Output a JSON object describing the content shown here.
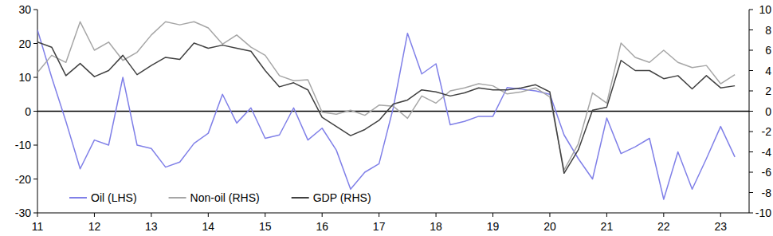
{
  "chart_data": {
    "type": "line",
    "x": [
      11,
      11.25,
      11.5,
      11.75,
      12,
      12.25,
      12.5,
      12.75,
      13,
      13.25,
      13.5,
      13.75,
      14,
      14.25,
      14.5,
      14.75,
      15,
      15.25,
      15.5,
      15.75,
      16,
      16.25,
      16.5,
      16.75,
      17,
      17.25,
      17.5,
      17.75,
      18,
      18.25,
      18.5,
      18.75,
      19,
      19.25,
      19.5,
      19.75,
      20,
      20.25,
      20.5,
      20.75,
      21,
      21.25,
      21.5,
      21.75,
      22,
      22.25,
      22.5,
      22.75,
      23,
      23.25
    ],
    "series": [
      {
        "name": "Oil (LHS)",
        "color": "#8080e8",
        "axis": "y",
        "values": [
          24,
          10,
          -3,
          -17,
          -8.5,
          -10,
          10,
          -10,
          -11,
          -16.5,
          -15,
          -9.5,
          -6.5,
          5,
          -3.5,
          1,
          -8,
          -7,
          1,
          -8.5,
          -5,
          -11.5,
          -23,
          -18,
          -15.5,
          1,
          23,
          11,
          14,
          -4,
          -3,
          -1.5,
          -1.5,
          7,
          6.5,
          6,
          5,
          -7,
          -14,
          -20,
          -2,
          -12.5,
          -10.5,
          -8,
          -26,
          -12,
          -23,
          -14,
          -4.5,
          -13.5
        ]
      },
      {
        "name": "Non-oil (RHS)",
        "color": "#a6a6a6",
        "axis": "y2",
        "values": [
          3.8,
          5.5,
          4.8,
          8.8,
          6,
          6.8,
          5,
          5.8,
          7.5,
          8.8,
          8.5,
          8.8,
          8.2,
          6.6,
          7.5,
          6.3,
          5.5,
          3.5,
          3,
          3.1,
          -0.1,
          -0.3,
          0.1,
          -0.4,
          0.6,
          0.5,
          -0.7,
          1.5,
          0.8,
          2,
          2.3,
          2.7,
          2.5,
          1.7,
          1.9,
          2.3,
          1.4,
          -5.8,
          -3.2,
          1.8,
          0.8,
          6.7,
          5.3,
          4.8,
          6,
          4.8,
          4.3,
          4.5,
          2.7,
          3.6
        ]
      },
      {
        "name": "GDP (RHS)",
        "color": "#404040",
        "axis": "y2",
        "values": [
          6.8,
          6.3,
          3.5,
          4.7,
          3.4,
          4,
          5.5,
          3.6,
          4.5,
          5.3,
          5.1,
          6.7,
          6.2,
          6.5,
          6.2,
          5.9,
          4,
          2.4,
          2.8,
          2.1,
          -0.6,
          -1.5,
          -2.4,
          -1.8,
          -0.9,
          0.7,
          1.1,
          2.1,
          1.9,
          1.5,
          1.8,
          2.3,
          2.1,
          2.1,
          2.3,
          2.6,
          1.9,
          -6.1,
          -3.8,
          0.1,
          0.4,
          5,
          4,
          4,
          3.2,
          3.5,
          2.2,
          3.5,
          2.3,
          2.5
        ]
      }
    ],
    "xlim": [
      11,
      23.5
    ],
    "xticks": [
      11,
      12,
      13,
      14,
      15,
      16,
      17,
      18,
      19,
      20,
      21,
      22,
      23
    ],
    "ylim": [
      -30,
      30
    ],
    "yticks": [
      -30,
      -20,
      -10,
      0,
      10,
      20,
      30
    ],
    "y2lim": [
      -10,
      10
    ],
    "y2ticks": [
      -10,
      -8,
      -6,
      -4,
      -2,
      0,
      2,
      4,
      6,
      8,
      10
    ],
    "grid": false,
    "legend": "lower left"
  }
}
